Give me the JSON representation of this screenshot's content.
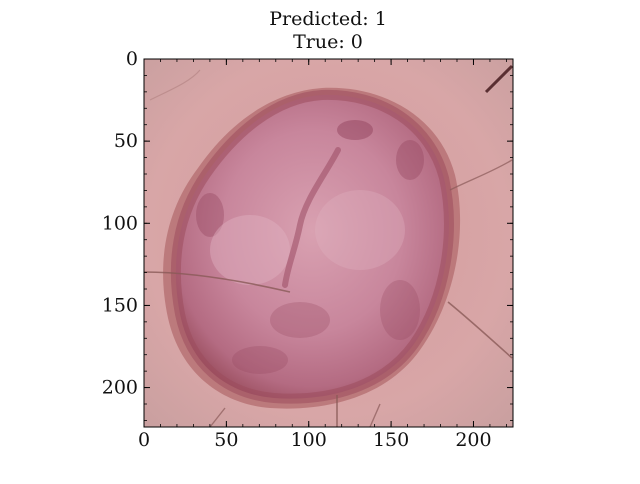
{
  "figure": {
    "title_lines": [
      "Predicted: 1",
      "True: 0"
    ]
  },
  "image": {
    "description_name": "dermoscopy-skin-lesion",
    "pixel_extent": {
      "x": [
        0,
        224
      ],
      "y": [
        0,
        224
      ]
    },
    "colors": {
      "skin_background": "#d7a3a3",
      "lesion_body": "#b46b82",
      "lesion_light": "#d9a1b1",
      "lesion_dark": "#8f3f59",
      "lesion_border": "#a15a4e",
      "hair": "#6f3f3b"
    }
  },
  "axes": {
    "x_ticks": [
      "0",
      "50",
      "100",
      "150",
      "200"
    ],
    "y_ticks": [
      "0",
      "50",
      "100",
      "150",
      "200"
    ],
    "x_tick_values": [
      0,
      50,
      100,
      150,
      200
    ],
    "y_tick_values": [
      0,
      50,
      100,
      150,
      200
    ],
    "minor_step": 10
  }
}
